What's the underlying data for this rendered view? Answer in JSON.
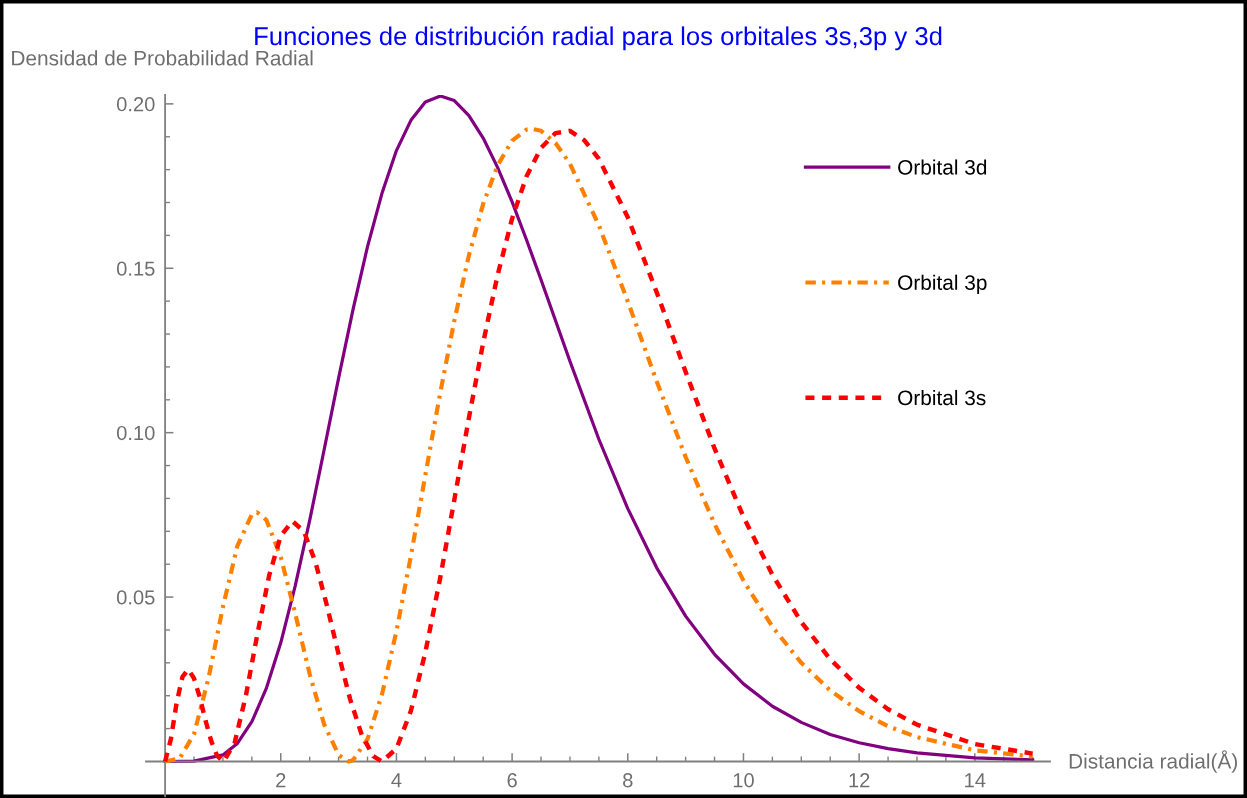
{
  "chart_data": {
    "type": "line",
    "title": "Funciones de distribución radial para los orbitales 3s,3p y 3d",
    "xlabel": "Distancia radial(Å)",
    "ylabel": "Densidad de Probabilidad Radial",
    "legend": "top right",
    "xlim": [
      -0.33,
      15.3
    ],
    "ylim": [
      -0.0105,
      0.2027
    ],
    "xticks": [
      {
        "value": 0.5,
        "label": null
      },
      {
        "value": 1,
        "label": null
      },
      {
        "value": 1.5,
        "label": null
      },
      2,
      {
        "value": 2.5,
        "label": null
      },
      {
        "value": 3,
        "label": null
      },
      {
        "value": 3.5,
        "label": null
      },
      4,
      {
        "value": 4.5,
        "label": null
      },
      {
        "value": 5,
        "label": null
      },
      {
        "value": 5.5,
        "label": null
      },
      6,
      {
        "value": 6.5,
        "label": null
      },
      {
        "value": 7,
        "label": null
      },
      {
        "value": 7.5,
        "label": null
      },
      8,
      {
        "value": 8.5,
        "label": null
      },
      {
        "value": 9,
        "label": null
      },
      {
        "value": 9.5,
        "label": null
      },
      10,
      {
        "value": 10.5,
        "label": null
      },
      {
        "value": 11,
        "label": null
      },
      {
        "value": 11.5,
        "label": null
      },
      12,
      {
        "value": 12.5,
        "label": null
      },
      {
        "value": 13,
        "label": null
      },
      {
        "value": 13.5,
        "label": null
      },
      14,
      {
        "value": 14.5,
        "label": null
      },
      {
        "value": 15,
        "label": null
      }
    ],
    "yticks": [
      {
        "value": 0.01,
        "label": null
      },
      {
        "value": 0.02,
        "label": null
      },
      {
        "value": 0.03,
        "label": null
      },
      {
        "value": 0.04,
        "label": null
      },
      0.05,
      {
        "value": 0.06,
        "label": null
      },
      {
        "value": 0.07,
        "label": null
      },
      {
        "value": 0.08,
        "label": null
      },
      {
        "value": 0.09,
        "label": null
      },
      {
        "value": 0.1,
        "label": "0.10"
      },
      {
        "value": 0.11,
        "label": null
      },
      {
        "value": 0.12,
        "label": null
      },
      {
        "value": 0.13,
        "label": null
      },
      {
        "value": 0.14,
        "label": null
      },
      0.15,
      {
        "value": 0.16,
        "label": null
      },
      {
        "value": 0.17,
        "label": null
      },
      {
        "value": 0.18,
        "label": null
      },
      {
        "value": 0.19,
        "label": null
      },
      {
        "value": 0.2,
        "label": "0.20"
      }
    ],
    "series": [
      {
        "name": "Orbital 3d",
        "color": "#800080",
        "line_style": "solid",
        "x": [
          0,
          0.5,
          1,
          1.25,
          1.5,
          1.75,
          2,
          2.25,
          2.5,
          2.75,
          3,
          3.25,
          3.5,
          3.75,
          4,
          4.25,
          4.5,
          4.76,
          5,
          5.25,
          5.5,
          5.75,
          6,
          6.25,
          6.5,
          7,
          7.5,
          8,
          8.5,
          9,
          9.5,
          10,
          10.5,
          11,
          11.5,
          12,
          12.5,
          13,
          14,
          15
        ],
        "values": [
          0,
          0.0001,
          0.002,
          0.0055,
          0.0121,
          0.0222,
          0.0361,
          0.0534,
          0.0733,
          0.0948,
          0.1166,
          0.1375,
          0.1566,
          0.1728,
          0.1858,
          0.195,
          0.2006,
          0.2024,
          0.201,
          0.1965,
          0.1896,
          0.1806,
          0.1702,
          0.1586,
          0.1465,
          0.1217,
          0.098,
          0.0769,
          0.0589,
          0.0442,
          0.0326,
          0.0236,
          0.0168,
          0.0119,
          0.0082,
          0.0057,
          0.0039,
          0.0026,
          0.0011,
          0.0005
        ]
      },
      {
        "name": "Orbital 3p",
        "color": "#ff8000",
        "line_style": "dashdot",
        "x": [
          0,
          0.25,
          0.5,
          0.75,
          1,
          1.25,
          1.5,
          1.59,
          1.75,
          2,
          2.25,
          2.5,
          2.75,
          3,
          3.17,
          3.25,
          3.5,
          3.75,
          4,
          4.25,
          4.5,
          4.75,
          5,
          5.25,
          5.5,
          5.75,
          6,
          6.25,
          6.35,
          6.5,
          6.75,
          7,
          7.5,
          8,
          8.5,
          9,
          9.5,
          10,
          10.5,
          11,
          11.5,
          12,
          12.5,
          13,
          14,
          15
        ],
        "values": [
          0,
          0.0009,
          0.0083,
          0.0253,
          0.047,
          0.0656,
          0.0751,
          0.0758,
          0.0735,
          0.0622,
          0.045,
          0.0266,
          0.0113,
          0.002,
          0,
          0.0004,
          0.0068,
          0.0204,
          0.0396,
          0.0625,
          0.0871,
          0.1114,
          0.134,
          0.1537,
          0.1696,
          0.1813,
          0.1888,
          0.1922,
          0.1924,
          0.1918,
          0.1881,
          0.1818,
          0.1631,
          0.1399,
          0.1156,
          0.0926,
          0.0722,
          0.055,
          0.041,
          0.03,
          0.0216,
          0.0153,
          0.0107,
          0.0074,
          0.0034,
          0.0015
        ]
      },
      {
        "name": "Orbital 3s",
        "color": "#ff0000",
        "line_style": "dashed",
        "x": [
          0,
          0.1,
          0.2,
          0.3,
          0.4,
          0.5,
          0.6,
          0.7,
          0.8,
          0.9,
          1.01,
          1.2,
          1.4,
          1.6,
          1.8,
          2,
          2.2,
          2.4,
          2.6,
          2.8,
          3,
          3.2,
          3.4,
          3.6,
          3.75,
          4,
          4.25,
          4.5,
          4.75,
          5,
          5.25,
          5.5,
          5.75,
          6,
          6.25,
          6.5,
          6.75,
          7,
          7.25,
          7.5,
          8,
          8.5,
          9,
          9.5,
          10,
          10.5,
          11,
          11.5,
          12,
          12.5,
          13,
          14,
          15
        ],
        "values": [
          0,
          0.0068,
          0.0179,
          0.0257,
          0.028,
          0.0253,
          0.0195,
          0.0124,
          0.0061,
          0.0017,
          0,
          0.0055,
          0.0203,
          0.0391,
          0.0566,
          0.0686,
          0.0731,
          0.07,
          0.0606,
          0.0473,
          0.0326,
          0.0189,
          0.0081,
          0.0016,
          0,
          0.0039,
          0.0154,
          0.0332,
          0.0552,
          0.0795,
          0.1042,
          0.1274,
          0.148,
          0.1651,
          0.178,
          0.1866,
          0.1911,
          0.1918,
          0.1889,
          0.1833,
          0.1655,
          0.1427,
          0.1185,
          0.0952,
          0.0744,
          0.0568,
          0.0424,
          0.0311,
          0.0224,
          0.0159,
          0.0112,
          0.0053,
          0.0024
        ]
      }
    ]
  }
}
